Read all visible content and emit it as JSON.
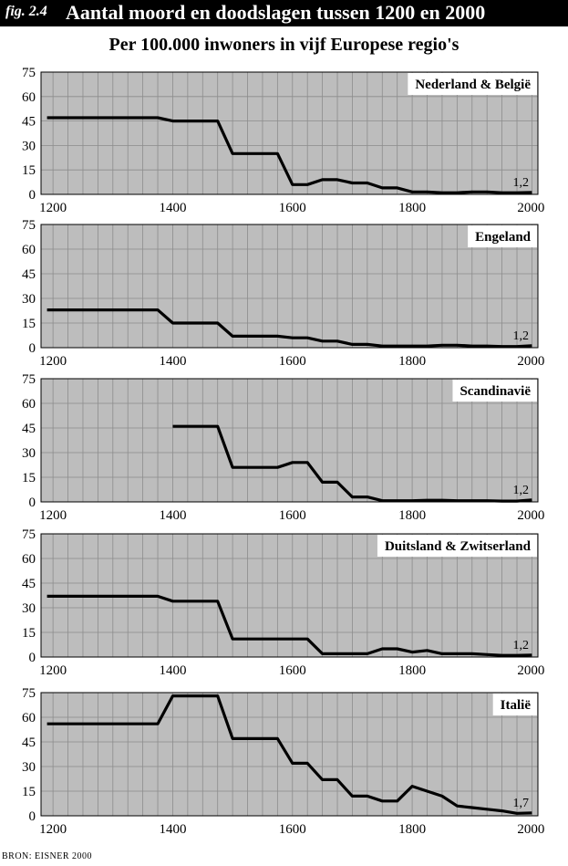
{
  "header": {
    "fig_label": "fig. 2.4",
    "title": "Aantal moord en doodslagen tussen 1200 en 2000"
  },
  "subtitle": "Per 100.000 inwoners in vijf Europese regio's",
  "source": "BRON: EISNER 2000",
  "style": {
    "line_color": "#000000",
    "plot_bg": "#bdbdbd",
    "grid_color": "#8c8c8c",
    "label_bg": "#ffffff"
  },
  "chart_data": [
    {
      "type": "line",
      "region": "Nederland & België",
      "xlim": [
        1180,
        2010
      ],
      "ylim": [
        0,
        75
      ],
      "xticks": [
        1200,
        1400,
        1600,
        1800,
        2000
      ],
      "yticks": [
        0,
        15,
        30,
        45,
        60,
        75
      ],
      "grid": true,
      "end_label": "1,2",
      "x": [
        1190,
        1375,
        1400,
        1475,
        1500,
        1575,
        1600,
        1625,
        1650,
        1675,
        1700,
        1725,
        1750,
        1775,
        1800,
        1825,
        1850,
        1875,
        1900,
        1925,
        1950,
        1975,
        2000
      ],
      "y": [
        47,
        47,
        45,
        45,
        25,
        25,
        6,
        6,
        9,
        9,
        7,
        7,
        4,
        4,
        1.5,
        1.5,
        1,
        1,
        1.5,
        1.5,
        1,
        1,
        1.2
      ]
    },
    {
      "type": "line",
      "region": "Engeland",
      "xlim": [
        1180,
        2010
      ],
      "ylim": [
        0,
        75
      ],
      "xticks": [
        1200,
        1400,
        1600,
        1800,
        2000
      ],
      "yticks": [
        0,
        15,
        30,
        45,
        60,
        75
      ],
      "grid": true,
      "end_label": "1,2",
      "x": [
        1190,
        1375,
        1400,
        1475,
        1500,
        1575,
        1600,
        1625,
        1650,
        1675,
        1700,
        1725,
        1750,
        1775,
        1800,
        1825,
        1850,
        1875,
        1900,
        1925,
        1950,
        1975,
        2000
      ],
      "y": [
        23,
        23,
        15,
        15,
        7,
        7,
        6,
        6,
        4,
        4,
        2,
        2,
        1,
        1,
        1,
        1,
        1.5,
        1.5,
        1,
        1,
        0.7,
        0.7,
        1.2
      ]
    },
    {
      "type": "line",
      "region": "Scandinavië",
      "xlim": [
        1180,
        2010
      ],
      "ylim": [
        0,
        75
      ],
      "xticks": [
        1200,
        1400,
        1600,
        1800,
        2000
      ],
      "yticks": [
        0,
        15,
        30,
        45,
        60,
        75
      ],
      "grid": true,
      "end_label": "1,2",
      "x": [
        1400,
        1475,
        1500,
        1575,
        1600,
        1625,
        1650,
        1675,
        1700,
        1725,
        1750,
        1775,
        1800,
        1825,
        1850,
        1875,
        1900,
        1925,
        1950,
        1975,
        2000
      ],
      "y": [
        46,
        46,
        21,
        21,
        24,
        24,
        12,
        12,
        3,
        3,
        0.7,
        0.7,
        0.7,
        1,
        1,
        0.7,
        0.7,
        0.7,
        0.5,
        0.5,
        1.2
      ]
    },
    {
      "type": "line",
      "region": "Duitsland & Zwitserland",
      "xlim": [
        1180,
        2010
      ],
      "ylim": [
        0,
        75
      ],
      "xticks": [
        1200,
        1400,
        1600,
        1800,
        2000
      ],
      "yticks": [
        0,
        15,
        30,
        45,
        60,
        75
      ],
      "grid": true,
      "end_label": "1,2",
      "x": [
        1190,
        1375,
        1400,
        1475,
        1500,
        1575,
        1600,
        1625,
        1650,
        1675,
        1700,
        1725,
        1750,
        1775,
        1800,
        1825,
        1850,
        1875,
        1900,
        1925,
        1950,
        1975,
        2000
      ],
      "y": [
        37,
        37,
        34,
        34,
        11,
        11,
        11,
        11,
        2,
        2,
        2,
        2,
        5,
        5,
        3,
        4,
        2,
        2,
        2,
        1.5,
        1,
        1,
        1.2
      ]
    },
    {
      "type": "line",
      "region": "Italië",
      "xlim": [
        1180,
        2010
      ],
      "ylim": [
        0,
        75
      ],
      "xticks": [
        1200,
        1400,
        1600,
        1800,
        2000
      ],
      "yticks": [
        0,
        15,
        30,
        45,
        60,
        75
      ],
      "grid": true,
      "end_label": "1,7",
      "x": [
        1190,
        1375,
        1400,
        1475,
        1500,
        1575,
        1600,
        1625,
        1650,
        1675,
        1700,
        1725,
        1750,
        1775,
        1800,
        1825,
        1850,
        1875,
        1900,
        1925,
        1950,
        1975,
        2000
      ],
      "y": [
        56,
        56,
        73,
        73,
        47,
        47,
        32,
        32,
        22,
        22,
        12,
        12,
        9,
        9,
        18,
        15,
        12,
        6,
        5,
        4,
        3,
        1.5,
        1.7
      ]
    }
  ]
}
